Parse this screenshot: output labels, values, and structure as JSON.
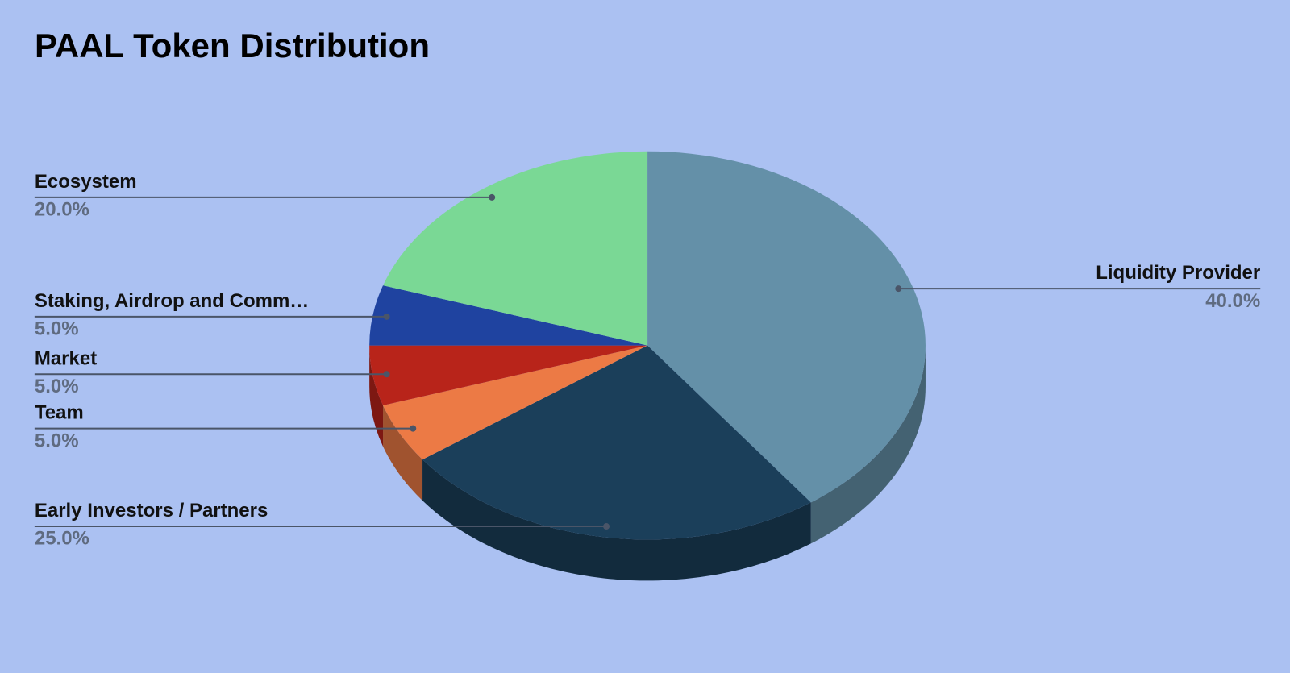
{
  "chart_data": {
    "type": "pie",
    "title": "PAAL Token Distribution",
    "categories": [
      "Liquidity Provider",
      "Early Investors / Partners",
      "Team",
      "Market",
      "Staking, Airdrop and Comm…",
      "Ecosystem"
    ],
    "values": [
      40,
      25,
      5,
      5,
      5,
      20
    ],
    "value_labels": [
      "40.0%",
      "25.0%",
      "5.0%",
      "5.0%",
      "5.0%",
      "20.0%"
    ],
    "colors": [
      "#6490a8",
      "#1b3f5a",
      "#ec7a45",
      "#b8241a",
      "#1f43a0",
      "#7ad895"
    ]
  }
}
